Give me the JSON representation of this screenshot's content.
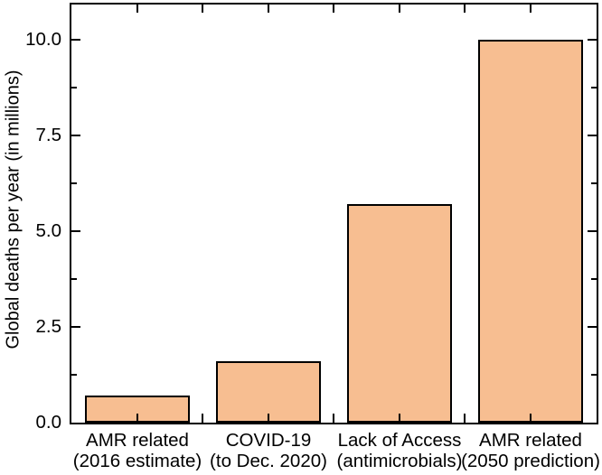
{
  "chart_data": {
    "type": "bar",
    "title": "",
    "ylabel": "Global deaths per year (in millions)",
    "xlabel": "",
    "categories": [
      {
        "line1": "AMR related",
        "line2": "(2016 estimate)"
      },
      {
        "line1": "COVID-19",
        "line2": "(to Dec. 2020)"
      },
      {
        "line1": "Lack of Access",
        "line2": "(antimicrobials)"
      },
      {
        "line1": "AMR related",
        "line2": "(2050 prediction)"
      }
    ],
    "values": [
      0.7,
      1.6,
      5.7,
      10.0
    ],
    "ylim": [
      0,
      10.9
    ],
    "ytick_major": [
      0,
      2.5,
      5.0,
      7.5,
      10.0
    ],
    "ytick_labels": [
      "0.0",
      "2.5",
      "5.0",
      "7.5",
      "10.0"
    ],
    "ytick_minor": [
      1.25,
      3.75,
      6.25,
      8.75
    ],
    "bar_width_fraction": 0.8,
    "bar_fill": "#F7BE91",
    "bar_stroke": "#000000",
    "axis_color": "#000000",
    "grid": false,
    "legend": "none"
  }
}
